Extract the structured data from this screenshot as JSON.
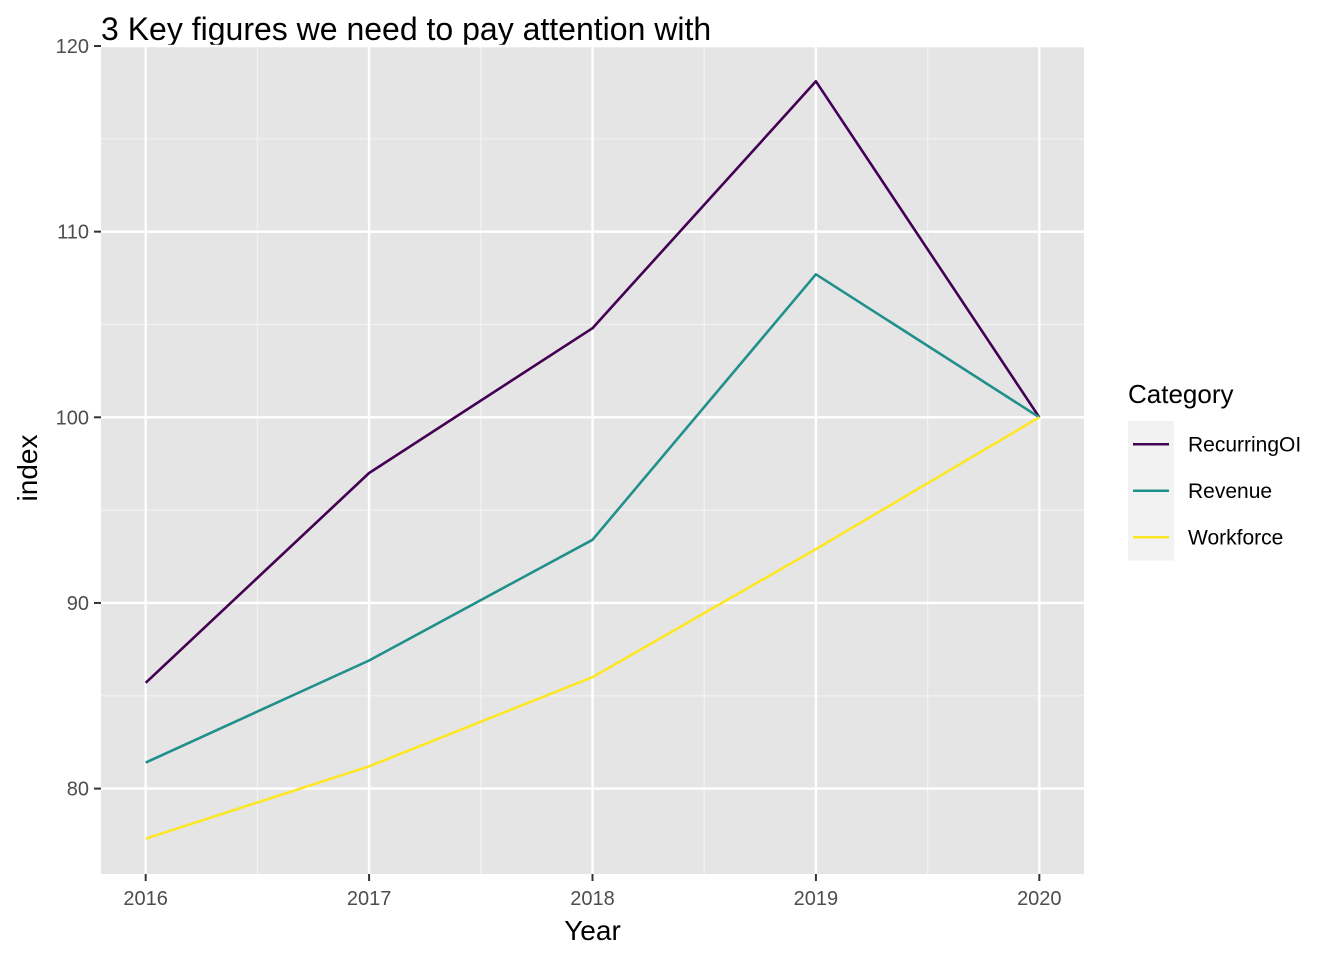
{
  "chart_data": {
    "type": "line",
    "title": "3 Key figures we need to pay attention with",
    "xlabel": "Year",
    "ylabel": "index",
    "x": [
      2016,
      2017,
      2018,
      2019,
      2020
    ],
    "x_tick_labels": [
      "2016",
      "2017",
      "2018",
      "2019",
      "2020"
    ],
    "xlim": [
      2015.8,
      2020.2
    ],
    "ylim": [
      75.4,
      120
    ],
    "y_ticks": [
      80,
      90,
      100,
      110,
      120
    ],
    "y_tick_labels": [
      "80",
      "90",
      "100",
      "110",
      "120"
    ],
    "grid": true,
    "legend": {
      "title": "Category",
      "position": "right"
    },
    "series": [
      {
        "name": "RecurringOI",
        "color": "#440154",
        "values": [
          85.7,
          97.0,
          104.8,
          118.1,
          100.0
        ]
      },
      {
        "name": "Revenue",
        "color": "#21908C",
        "values": [
          81.4,
          86.9,
          93.4,
          107.7,
          100.0
        ]
      },
      {
        "name": "Workforce",
        "color": "#FDE725",
        "values": [
          77.3,
          81.2,
          86.0,
          92.9,
          100.0
        ]
      }
    ]
  }
}
